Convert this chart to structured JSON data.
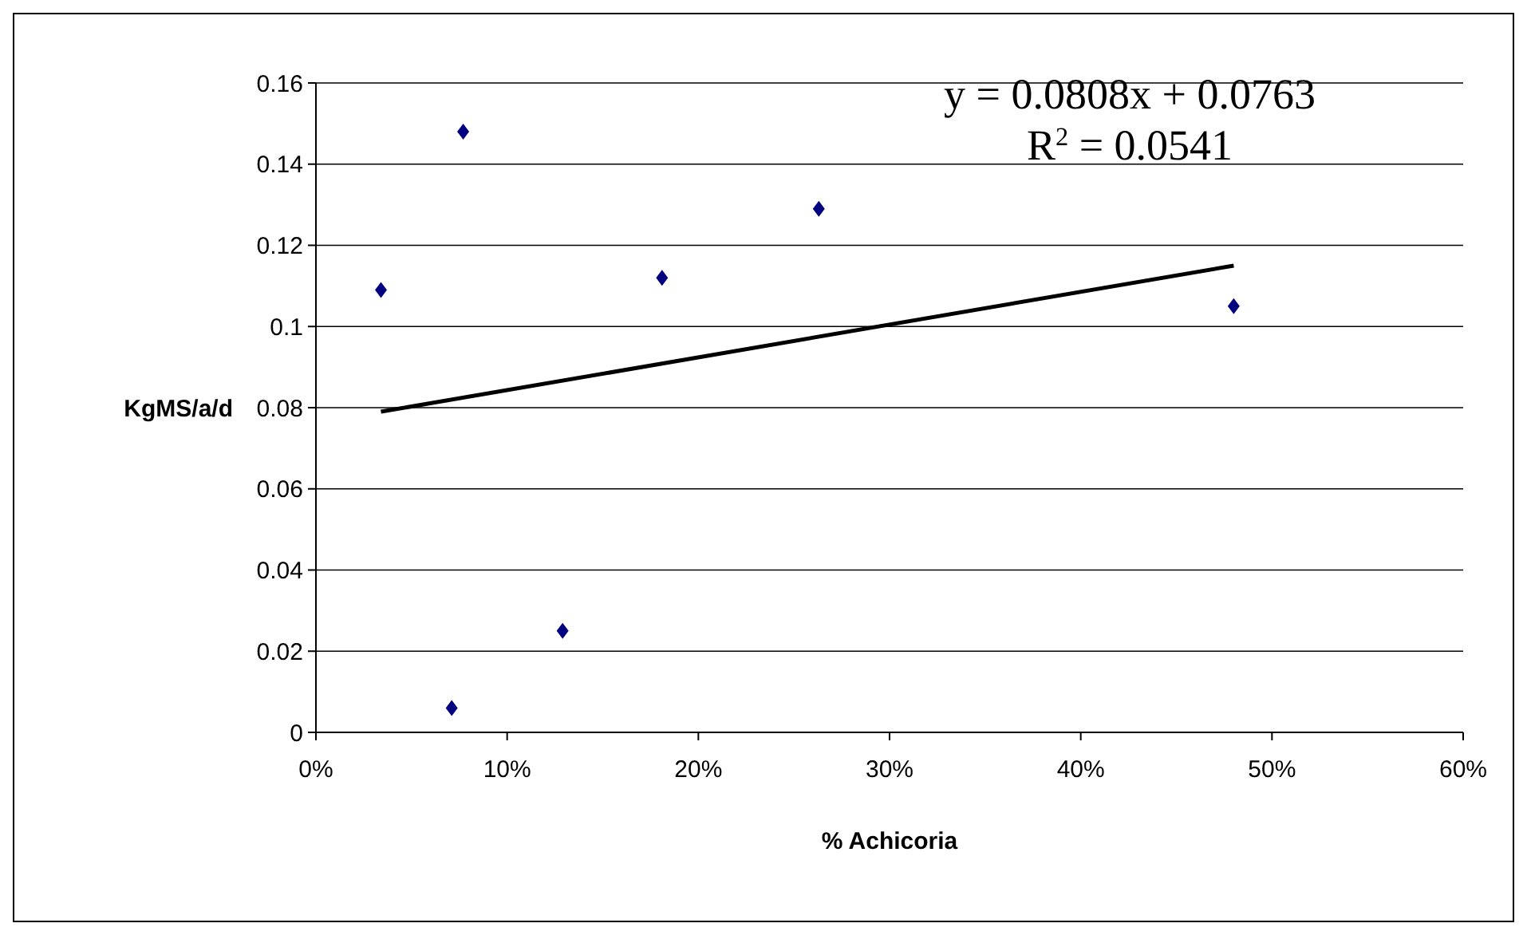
{
  "chart_data": {
    "type": "scatter",
    "xlabel": "% Achicoria",
    "ylabel": "KgMS/a/d",
    "xlim": [
      0,
      0.6
    ],
    "xticks": [
      {
        "value": 0,
        "label": "0%"
      },
      {
        "value": 0.1,
        "label": "10%"
      },
      {
        "value": 0.2,
        "label": "20%"
      },
      {
        "value": 0.3,
        "label": "30%"
      },
      {
        "value": 0.4,
        "label": "40%"
      },
      {
        "value": 0.5,
        "label": "50%"
      },
      {
        "value": 0.6,
        "label": "60%"
      }
    ],
    "ylim": [
      0,
      0.16
    ],
    "yticks": [
      {
        "value": 0,
        "label": "0"
      },
      {
        "value": 0.02,
        "label": "0.02"
      },
      {
        "value": 0.04,
        "label": "0.04"
      },
      {
        "value": 0.06,
        "label": "0.06"
      },
      {
        "value": 0.08,
        "label": "0.08"
      },
      {
        "value": 0.1,
        "label": "0.1"
      },
      {
        "value": 0.12,
        "label": "0.12"
      },
      {
        "value": 0.14,
        "label": "0.14"
      },
      {
        "value": 0.16,
        "label": "0.16"
      }
    ],
    "grid": "y",
    "series": [
      {
        "color": "#000080",
        "marker": "diamond",
        "x": [
          0.034,
          0.071,
          0.077,
          0.129,
          0.181,
          0.263,
          0.48
        ],
        "values": [
          0.109,
          0.006,
          0.148,
          0.025,
          0.112,
          0.129,
          0.105
        ]
      },
      {
        "type": "line",
        "color": "#000000",
        "marker": "none",
        "line_style": "solid",
        "x": [
          0.034,
          0.48
        ],
        "values": [
          0.079,
          0.115
        ]
      }
    ],
    "annotations": [
      "y = 0.0808x + 0.0763",
      "R$^{2}$ = 0.0541"
    ]
  }
}
